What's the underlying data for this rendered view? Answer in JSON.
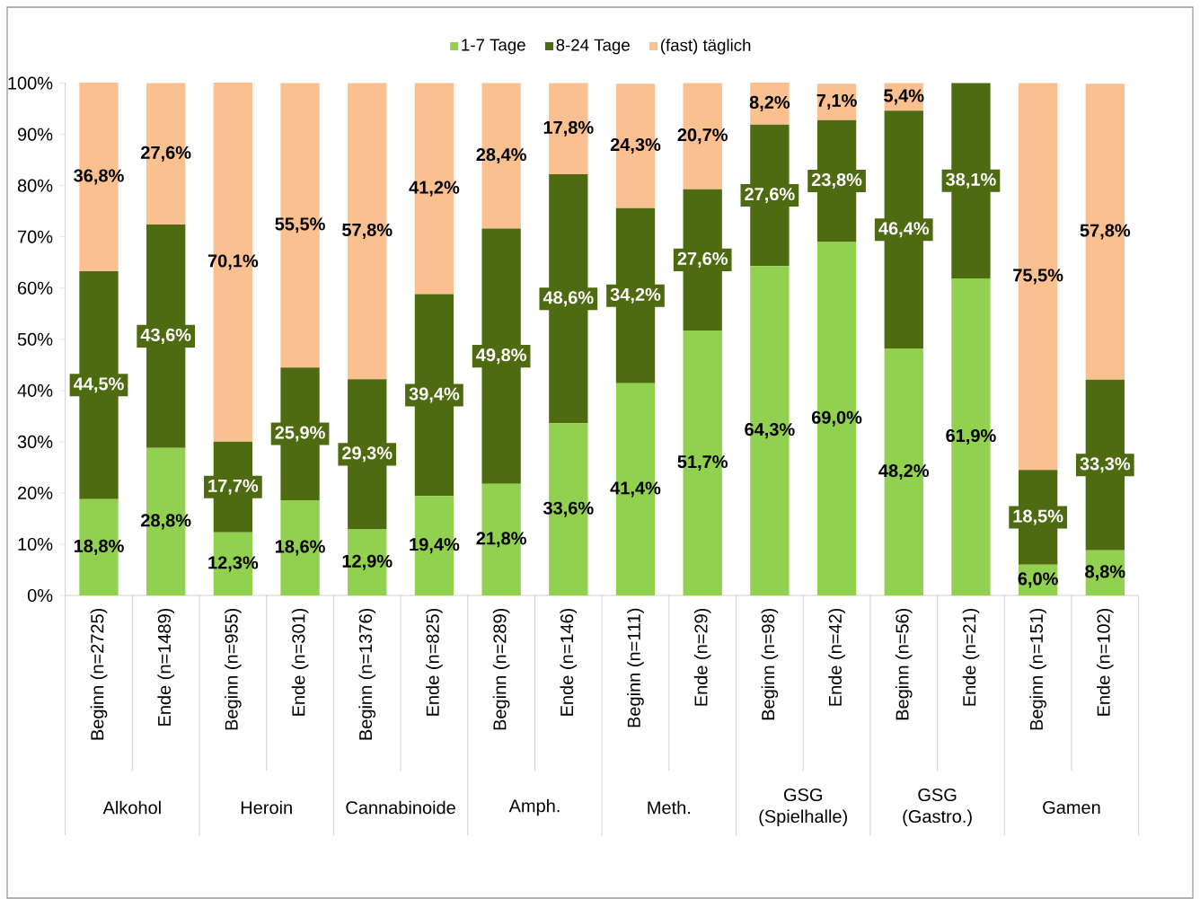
{
  "chart_data": {
    "type": "bar",
    "stacked": true,
    "legend": "top",
    "categories": [
      "Beginn (n=2725)",
      "Ende (n=1489)",
      "Beginn (n=955)",
      "Ende (n=301)",
      "Beginn (n=1376)",
      "Ende (n=825)",
      "Beginn (n=289)",
      "Ende (n=146)",
      "Beginn (n=111)",
      "Ende (n=29)",
      "Beginn (n=98)",
      "Ende (n=42)",
      "Beginn (n=56)",
      "Ende (n=21)",
      "Beginn (n=151)",
      "Ende (n=102)"
    ],
    "annotations": [
      "Alkohol",
      "Heroin",
      "Cannabinoide",
      "Amph.",
      "Meth.",
      "GSG (Spielhalle)",
      "GSG (Gastro.)",
      "Gamen"
    ],
    "ylim": [
      0,
      100.1
    ],
    "yticks": [
      {
        "value": 0,
        "label": "0%"
      },
      {
        "value": 10,
        "label": "10%"
      },
      {
        "value": 20,
        "label": "20%"
      },
      {
        "value": 30,
        "label": "30%"
      },
      {
        "value": 40,
        "label": "40%"
      },
      {
        "value": 50,
        "label": "50%"
      },
      {
        "value": 60,
        "label": "60%"
      },
      {
        "value": 70,
        "label": "70%"
      },
      {
        "value": 80,
        "label": "80%"
      },
      {
        "value": 90,
        "label": "90%"
      },
      {
        "value": 100,
        "label": "100%"
      }
    ],
    "series": [
      {
        "name": "1-7 Tage",
        "color": "#92d050",
        "values": [
          18.8,
          28.8,
          12.3,
          18.6,
          12.9,
          19.4,
          21.8,
          33.6,
          41.4,
          51.7,
          64.3,
          69.0,
          48.2,
          61.9,
          6.0,
          8.8
        ],
        "value_labels": [
          "18,8%",
          "28,8%",
          "12,3%",
          "18,6%",
          "12,9%",
          "19,4%",
          "21,8%",
          "33,6%",
          "41,4%",
          "51,7%",
          "64,3%",
          "69,0%",
          "48,2%",
          "61,9%",
          "6,0%",
          "8,8%"
        ]
      },
      {
        "name": "8-24 Tage",
        "color": "#4f6b12",
        "values": [
          44.5,
          43.6,
          17.7,
          25.9,
          29.3,
          39.4,
          49.8,
          48.6,
          34.2,
          27.6,
          27.6,
          23.8,
          46.4,
          38.1,
          18.5,
          33.3
        ],
        "value_labels": [
          "44,5%",
          "43,6%",
          "17,7%",
          "25,9%",
          "29,3%",
          "39,4%",
          "49,8%",
          "48,6%",
          "34,2%",
          "27,6%",
          "27,6%",
          "23,8%",
          "46,4%",
          "38,1%",
          "18,5%",
          "33,3%"
        ]
      },
      {
        "name": "(fast) täglich",
        "color": "#fac090",
        "values": [
          36.8,
          27.6,
          70.1,
          55.5,
          57.8,
          41.2,
          28.4,
          17.8,
          24.3,
          20.7,
          8.2,
          7.1,
          5.4,
          0,
          75.5,
          57.8
        ],
        "value_labels": [
          "36,8%",
          "27,6%",
          "70,1%",
          "55,5%",
          "57,8%",
          "41,2%",
          "28,4%",
          "17,8%",
          "24,3%",
          "20,7%",
          "8,2%",
          "7,1%",
          "5,4%",
          null,
          "75,5%",
          "57,8%"
        ]
      }
    ]
  }
}
